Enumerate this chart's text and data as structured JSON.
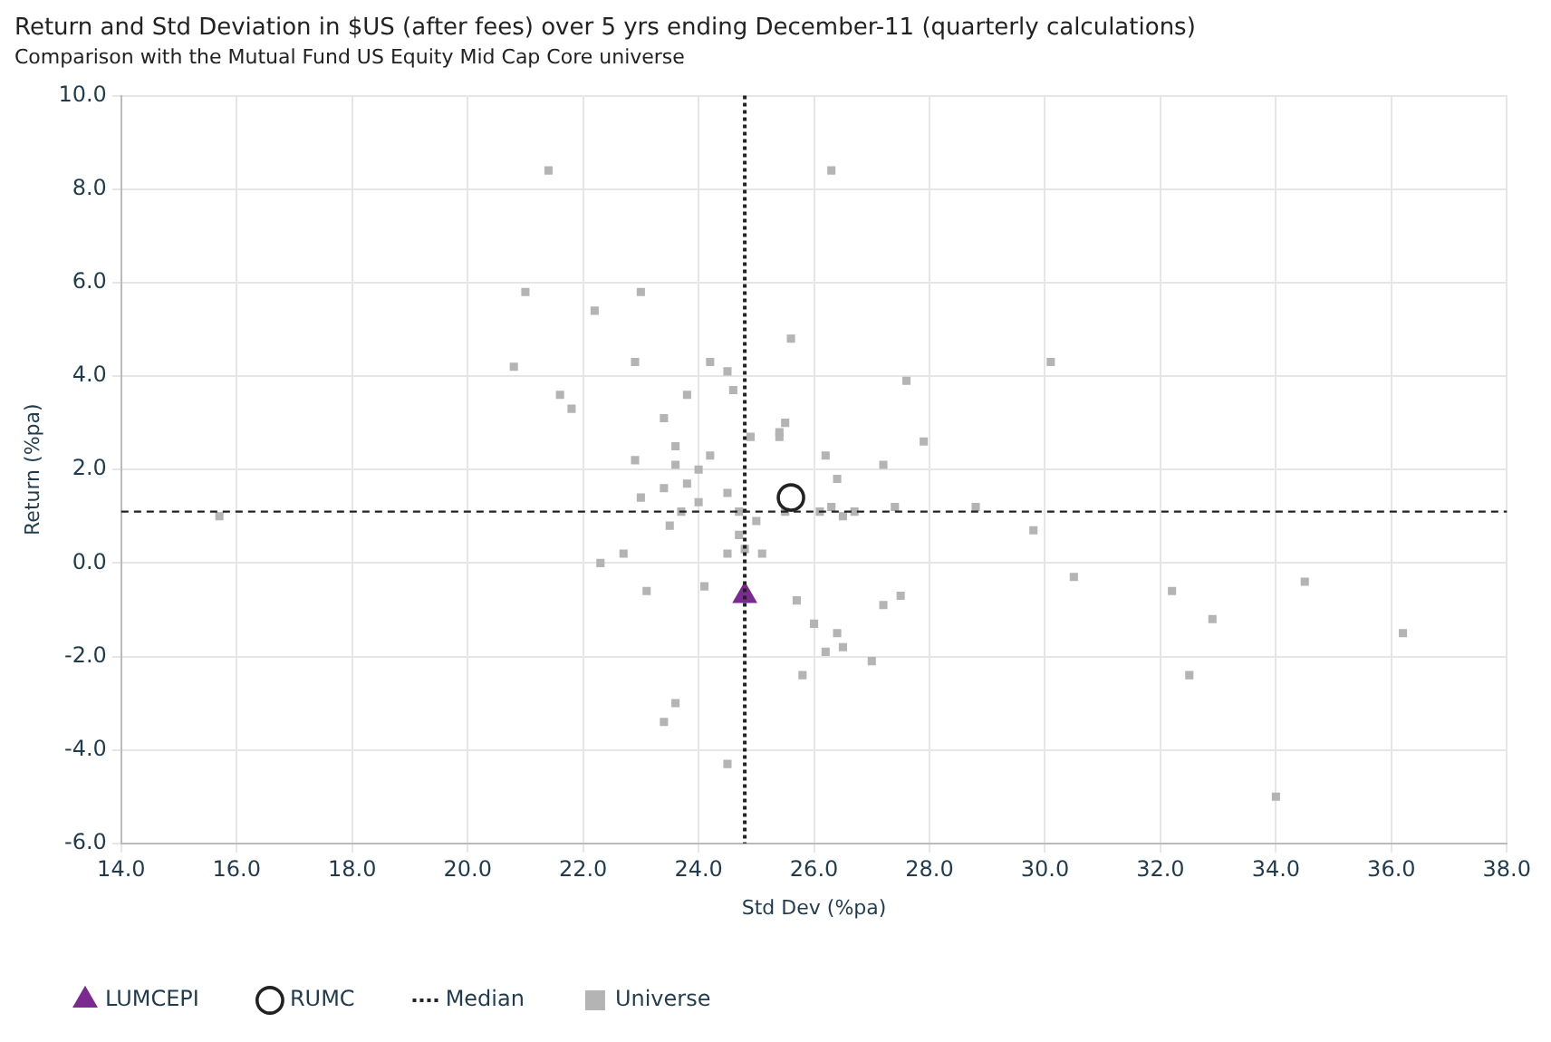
{
  "chart_data": {
    "type": "scatter",
    "title": "Return and Std Deviation in $US (after fees) over 5 yrs ending December-11 (quarterly calculations)",
    "subtitle": "Comparison with the Mutual Fund US Equity Mid Cap Core universe",
    "xlabel": "Std Dev (%pa)",
    "ylabel": "Return (%pa)",
    "xlim": [
      14,
      38
    ],
    "ylim": [
      -6,
      10
    ],
    "xticks": [
      {
        "value": 14,
        "label": "14.0"
      },
      {
        "value": 16,
        "label": "16.0"
      },
      {
        "value": 18,
        "label": "18.0"
      },
      {
        "value": 20,
        "label": "20.0"
      },
      {
        "value": 22,
        "label": "22.0"
      },
      {
        "value": 24,
        "label": "24.0"
      },
      {
        "value": 26,
        "label": "26.0"
      },
      {
        "value": 28,
        "label": "28.0"
      },
      {
        "value": 30,
        "label": "30.0"
      },
      {
        "value": 32,
        "label": "32.0"
      },
      {
        "value": 34,
        "label": "34.0"
      },
      {
        "value": 36,
        "label": "36.0"
      },
      {
        "value": 38,
        "label": "38.0"
      }
    ],
    "yticks": [
      {
        "value": -6,
        "label": "-6.0"
      },
      {
        "value": -4,
        "label": "-4.0"
      },
      {
        "value": -2,
        "label": "-2.0"
      },
      {
        "value": 0,
        "label": "0.0"
      },
      {
        "value": 2,
        "label": "2.0"
      },
      {
        "value": 4,
        "label": "4.0"
      },
      {
        "value": 6,
        "label": "6.0"
      },
      {
        "value": 8,
        "label": "8.0"
      },
      {
        "value": 10,
        "label": "10.0"
      }
    ],
    "grid": true,
    "legend": "bottom left",
    "ref_lines": [
      {
        "axis": "x",
        "value": 24.8,
        "label": "Median",
        "color": "#222222",
        "line_style": "dotted"
      },
      {
        "axis": "y",
        "value": 1.1,
        "color": "#222222",
        "line_style": "dashed"
      }
    ],
    "series": [
      {
        "name": "LUMCEPI",
        "color": "#7b2a8f",
        "marker": "triangle",
        "x": [
          24.8
        ],
        "values": [
          -0.7
        ]
      },
      {
        "name": "RUMC",
        "color": "#222222",
        "marker": "circle",
        "x": [
          25.6
        ],
        "values": [
          1.4
        ]
      },
      {
        "name": "Universe",
        "color": "#b4b4b4",
        "marker": "square",
        "x": [
          21.4,
          26.3,
          21.0,
          23.0,
          22.2,
          25.6,
          20.8,
          22.9,
          24.2,
          24.5,
          24.6,
          21.6,
          21.8,
          23.8,
          27.6,
          30.1,
          27.9,
          23.4,
          24.9,
          25.5,
          25.4,
          25.4,
          23.6,
          22.9,
          23.6,
          24.2,
          26.2,
          27.2,
          24.0,
          26.4,
          23.8,
          23.0,
          23.4,
          24.5,
          24.0,
          27.4,
          23.7,
          25.5,
          26.1,
          26.3,
          26.5,
          26.7,
          28.8,
          24.7,
          25.0,
          23.5,
          24.7,
          24.8,
          24.5,
          25.1,
          22.7,
          22.3,
          23.1,
          24.1,
          25.7,
          26.0,
          26.4,
          26.2,
          26.5,
          27.2,
          27.5,
          27.0,
          25.8,
          23.6,
          23.4,
          24.5,
          29.8,
          30.5,
          32.2,
          32.9,
          32.5,
          34.5,
          36.2,
          34.0,
          15.7
        ],
        "values": [
          8.4,
          8.4,
          5.8,
          5.8,
          5.4,
          4.8,
          4.2,
          4.3,
          4.3,
          4.1,
          3.7,
          3.6,
          3.3,
          3.6,
          3.9,
          4.3,
          2.6,
          3.1,
          2.7,
          3.0,
          2.8,
          2.7,
          2.5,
          2.2,
          2.1,
          2.3,
          2.3,
          2.1,
          2.0,
          1.8,
          1.7,
          1.4,
          1.6,
          1.5,
          1.3,
          1.2,
          1.1,
          1.1,
          1.1,
          1.2,
          1.0,
          1.1,
          1.2,
          1.1,
          0.9,
          0.8,
          0.6,
          0.3,
          0.2,
          0.2,
          0.2,
          0.0,
          -0.6,
          -0.5,
          -0.8,
          -1.3,
          -1.5,
          -1.9,
          -1.8,
          -0.9,
          -0.7,
          -2.1,
          -2.4,
          -3.0,
          -3.4,
          -4.3,
          0.7,
          -0.3,
          -0.6,
          -1.2,
          -2.4,
          -0.4,
          -1.5,
          -5.0,
          1.0
        ]
      }
    ]
  }
}
